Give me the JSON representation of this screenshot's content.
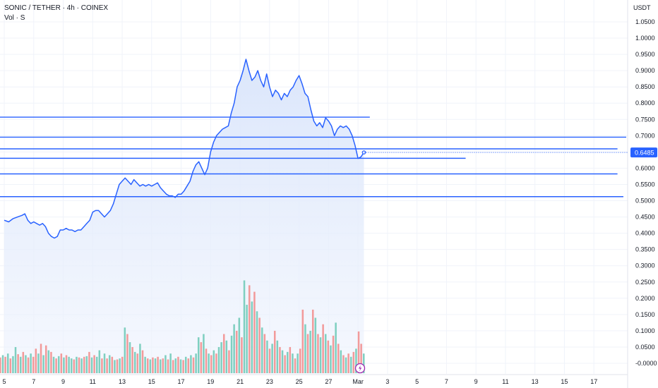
{
  "header": {
    "symbol": "SONIC / TETHER · 4h · COINEX",
    "volume_label": "Vol · S"
  },
  "colors": {
    "line": "#2962ff",
    "area_top": "#dbe6fb",
    "area_bottom": "#eef3fd",
    "vol_up": "#7fcfc0",
    "vol_down": "#f29a9a",
    "price_badge": "#2962ff",
    "grid": "#f0f3fa"
  },
  "chart_data": {
    "type": "line",
    "currency": "USDT",
    "last_price": 0.6485,
    "last_price_label": "0.6485",
    "ylim": [
      -0.03,
      1.1
    ],
    "y_ticks": [
      "1.0500",
      "1.0000",
      "0.9500",
      "0.9000",
      "0.8500",
      "0.8000",
      "0.7500",
      "0.7000",
      "0.6500",
      "0.6000",
      "0.5500",
      "0.5000",
      "0.4500",
      "0.4000",
      "0.3500",
      "0.3000",
      "0.2500",
      "0.2000",
      "0.1500",
      "0.1000",
      "0.0500",
      "-0.0000"
    ],
    "y_tick_values": [
      1.05,
      1.0,
      0.95,
      0.9,
      0.85,
      0.8,
      0.75,
      0.7,
      0.65,
      0.6,
      0.55,
      0.5,
      0.45,
      0.4,
      0.35,
      0.3,
      0.25,
      0.2,
      0.15,
      0.1,
      0.05,
      0.0
    ],
    "x_ticks": [
      {
        "label": "5",
        "day": 5
      },
      {
        "label": "7",
        "day": 7
      },
      {
        "label": "9",
        "day": 9
      },
      {
        "label": "11",
        "day": 11
      },
      {
        "label": "13",
        "day": 13
      },
      {
        "label": "15",
        "day": 15
      },
      {
        "label": "17",
        "day": 17
      },
      {
        "label": "19",
        "day": 19
      },
      {
        "label": "21",
        "day": 21
      },
      {
        "label": "23",
        "day": 23
      },
      {
        "label": "25",
        "day": 25
      },
      {
        "label": "27",
        "day": 27
      },
      {
        "label": "Mar",
        "day": 29
      },
      {
        "label": "3",
        "day": 31
      },
      {
        "label": "5",
        "day": 33
      },
      {
        "label": "7",
        "day": 35
      },
      {
        "label": "9",
        "day": 37
      },
      {
        "label": "11",
        "day": 39
      },
      {
        "label": "13",
        "day": 41
      },
      {
        "label": "15",
        "day": 43
      },
      {
        "label": "17",
        "day": 45
      }
    ],
    "price_series": [
      [
        5.0,
        0.44
      ],
      [
        5.3,
        0.435
      ],
      [
        5.6,
        0.445
      ],
      [
        5.9,
        0.45
      ],
      [
        6.2,
        0.455
      ],
      [
        6.4,
        0.46
      ],
      [
        6.6,
        0.44
      ],
      [
        6.8,
        0.43
      ],
      [
        7.0,
        0.435
      ],
      [
        7.2,
        0.43
      ],
      [
        7.4,
        0.425
      ],
      [
        7.6,
        0.43
      ],
      [
        7.8,
        0.42
      ],
      [
        8.0,
        0.4
      ],
      [
        8.2,
        0.39
      ],
      [
        8.4,
        0.385
      ],
      [
        8.6,
        0.39
      ],
      [
        8.8,
        0.41
      ],
      [
        9.0,
        0.41
      ],
      [
        9.2,
        0.415
      ],
      [
        9.4,
        0.41
      ],
      [
        9.6,
        0.41
      ],
      [
        9.8,
        0.405
      ],
      [
        10.0,
        0.41
      ],
      [
        10.2,
        0.41
      ],
      [
        10.4,
        0.42
      ],
      [
        10.6,
        0.43
      ],
      [
        10.8,
        0.44
      ],
      [
        11.0,
        0.465
      ],
      [
        11.2,
        0.47
      ],
      [
        11.4,
        0.47
      ],
      [
        11.6,
        0.46
      ],
      [
        11.8,
        0.45
      ],
      [
        12.0,
        0.46
      ],
      [
        12.2,
        0.47
      ],
      [
        12.4,
        0.49
      ],
      [
        12.6,
        0.52
      ],
      [
        12.8,
        0.55
      ],
      [
        13.0,
        0.56
      ],
      [
        13.2,
        0.57
      ],
      [
        13.4,
        0.56
      ],
      [
        13.6,
        0.55
      ],
      [
        13.8,
        0.565
      ],
      [
        14.0,
        0.555
      ],
      [
        14.2,
        0.545
      ],
      [
        14.4,
        0.55
      ],
      [
        14.6,
        0.545
      ],
      [
        14.8,
        0.55
      ],
      [
        15.0,
        0.545
      ],
      [
        15.2,
        0.55
      ],
      [
        15.4,
        0.555
      ],
      [
        15.6,
        0.54
      ],
      [
        15.8,
        0.53
      ],
      [
        16.0,
        0.52
      ],
      [
        16.2,
        0.515
      ],
      [
        16.4,
        0.515
      ],
      [
        16.6,
        0.51
      ],
      [
        16.8,
        0.52
      ],
      [
        17.0,
        0.52
      ],
      [
        17.2,
        0.53
      ],
      [
        17.4,
        0.545
      ],
      [
        17.6,
        0.56
      ],
      [
        17.8,
        0.59
      ],
      [
        18.0,
        0.61
      ],
      [
        18.2,
        0.62
      ],
      [
        18.4,
        0.6
      ],
      [
        18.6,
        0.58
      ],
      [
        18.8,
        0.6
      ],
      [
        19.0,
        0.65
      ],
      [
        19.2,
        0.68
      ],
      [
        19.4,
        0.7
      ],
      [
        19.6,
        0.71
      ],
      [
        19.8,
        0.72
      ],
      [
        20.0,
        0.725
      ],
      [
        20.2,
        0.73
      ],
      [
        20.4,
        0.77
      ],
      [
        20.6,
        0.8
      ],
      [
        20.8,
        0.85
      ],
      [
        21.0,
        0.87
      ],
      [
        21.2,
        0.9
      ],
      [
        21.4,
        0.935
      ],
      [
        21.6,
        0.9
      ],
      [
        21.8,
        0.87
      ],
      [
        22.0,
        0.88
      ],
      [
        22.2,
        0.9
      ],
      [
        22.4,
        0.87
      ],
      [
        22.6,
        0.85
      ],
      [
        22.8,
        0.89
      ],
      [
        23.0,
        0.85
      ],
      [
        23.2,
        0.82
      ],
      [
        23.4,
        0.84
      ],
      [
        23.6,
        0.83
      ],
      [
        23.8,
        0.81
      ],
      [
        24.0,
        0.83
      ],
      [
        24.2,
        0.82
      ],
      [
        24.4,
        0.84
      ],
      [
        24.6,
        0.85
      ],
      [
        24.8,
        0.87
      ],
      [
        25.0,
        0.885
      ],
      [
        25.2,
        0.86
      ],
      [
        25.4,
        0.83
      ],
      [
        25.6,
        0.82
      ],
      [
        25.8,
        0.78
      ],
      [
        26.0,
        0.745
      ],
      [
        26.2,
        0.73
      ],
      [
        26.4,
        0.74
      ],
      [
        26.6,
        0.725
      ],
      [
        26.8,
        0.755
      ],
      [
        27.0,
        0.745
      ],
      [
        27.2,
        0.73
      ],
      [
        27.4,
        0.7
      ],
      [
        27.6,
        0.72
      ],
      [
        27.8,
        0.73
      ],
      [
        28.0,
        0.725
      ],
      [
        28.2,
        0.73
      ],
      [
        28.4,
        0.72
      ],
      [
        28.6,
        0.7
      ],
      [
        28.8,
        0.67
      ],
      [
        29.0,
        0.63
      ],
      [
        29.2,
        0.635
      ],
      [
        29.4,
        0.6485
      ]
    ],
    "horizontal_lines": [
      {
        "price": 0.757,
        "from_day": 4.5,
        "to_day": 29.8
      },
      {
        "price": 0.6955,
        "from_day": 4.5,
        "to_day": 48
      },
      {
        "price": 0.6595,
        "from_day": 4.5,
        "to_day": 46.6
      },
      {
        "price": 0.6305,
        "from_day": 4.5,
        "to_day": 36.3
      },
      {
        "price": 0.5825,
        "from_day": 4.5,
        "to_day": 46.6
      },
      {
        "price": 0.5125,
        "from_day": 4.5,
        "to_day": 47
      }
    ],
    "volume_scale": {
      "day_from": 4.5,
      "day_to": 29.5
    },
    "volume": [
      {
        "v": 0.012,
        "up": true
      },
      {
        "v": 0.018,
        "up": false
      },
      {
        "v": 0.025,
        "up": true
      },
      {
        "v": 0.02,
        "up": false
      },
      {
        "v": 0.03,
        "up": true
      },
      {
        "v": 0.015,
        "up": false
      },
      {
        "v": 0.022,
        "up": true
      },
      {
        "v": 0.05,
        "up": true
      },
      {
        "v": 0.028,
        "up": false
      },
      {
        "v": 0.02,
        "up": true
      },
      {
        "v": 0.035,
        "up": false
      },
      {
        "v": 0.025,
        "up": true
      },
      {
        "v": 0.018,
        "up": false
      },
      {
        "v": 0.03,
        "up": true
      },
      {
        "v": 0.02,
        "up": false
      },
      {
        "v": 0.045,
        "up": false
      },
      {
        "v": 0.03,
        "up": true
      },
      {
        "v": 0.06,
        "up": false
      },
      {
        "v": 0.025,
        "up": true
      },
      {
        "v": 0.055,
        "up": false
      },
      {
        "v": 0.04,
        "up": true
      },
      {
        "v": 0.035,
        "up": false
      },
      {
        "v": 0.02,
        "up": true
      },
      {
        "v": 0.015,
        "up": false
      },
      {
        "v": 0.022,
        "up": true
      },
      {
        "v": 0.03,
        "up": false
      },
      {
        "v": 0.018,
        "up": true
      },
      {
        "v": 0.025,
        "up": false
      },
      {
        "v": 0.02,
        "up": true
      },
      {
        "v": 0.015,
        "up": true
      },
      {
        "v": 0.012,
        "up": false
      },
      {
        "v": 0.02,
        "up": true
      },
      {
        "v": 0.018,
        "up": false
      },
      {
        "v": 0.015,
        "up": true
      },
      {
        "v": 0.02,
        "up": false
      },
      {
        "v": 0.022,
        "up": true
      },
      {
        "v": 0.035,
        "up": false
      },
      {
        "v": 0.018,
        "up": true
      },
      {
        "v": 0.025,
        "up": false
      },
      {
        "v": 0.02,
        "up": true
      },
      {
        "v": 0.04,
        "up": true
      },
      {
        "v": 0.015,
        "up": false
      },
      {
        "v": 0.03,
        "up": true
      },
      {
        "v": 0.015,
        "up": false
      },
      {
        "v": 0.025,
        "up": true
      },
      {
        "v": 0.02,
        "up": false
      },
      {
        "v": 0.01,
        "up": true
      },
      {
        "v": 0.012,
        "up": false
      },
      {
        "v": 0.015,
        "up": true
      },
      {
        "v": 0.02,
        "up": false
      },
      {
        "v": 0.11,
        "up": true
      },
      {
        "v": 0.09,
        "up": false
      },
      {
        "v": 0.065,
        "up": true
      },
      {
        "v": 0.05,
        "up": false
      },
      {
        "v": 0.035,
        "up": true
      },
      {
        "v": 0.03,
        "up": false
      },
      {
        "v": 0.06,
        "up": true
      },
      {
        "v": 0.04,
        "up": false
      },
      {
        "v": 0.02,
        "up": true
      },
      {
        "v": 0.015,
        "up": false
      },
      {
        "v": 0.012,
        "up": true
      },
      {
        "v": 0.018,
        "up": false
      },
      {
        "v": 0.015,
        "up": true
      },
      {
        "v": 0.02,
        "up": false
      },
      {
        "v": 0.012,
        "up": true
      },
      {
        "v": 0.015,
        "up": false
      },
      {
        "v": 0.025,
        "up": true
      },
      {
        "v": 0.012,
        "up": false
      },
      {
        "v": 0.03,
        "up": true
      },
      {
        "v": 0.01,
        "up": false
      },
      {
        "v": 0.015,
        "up": true
      },
      {
        "v": 0.02,
        "up": false
      },
      {
        "v": 0.012,
        "up": true
      },
      {
        "v": 0.01,
        "up": false
      },
      {
        "v": 0.02,
        "up": true
      },
      {
        "v": 0.015,
        "up": false
      },
      {
        "v": 0.025,
        "up": true
      },
      {
        "v": 0.018,
        "up": false
      },
      {
        "v": 0.03,
        "up": true
      },
      {
        "v": 0.08,
        "up": true
      },
      {
        "v": 0.065,
        "up": false
      },
      {
        "v": 0.09,
        "up": true
      },
      {
        "v": 0.045,
        "up": false
      },
      {
        "v": 0.03,
        "up": true
      },
      {
        "v": 0.025,
        "up": false
      },
      {
        "v": 0.04,
        "up": true
      },
      {
        "v": 0.03,
        "up": false
      },
      {
        "v": 0.05,
        "up": true
      },
      {
        "v": 0.065,
        "up": true
      },
      {
        "v": 0.09,
        "up": false
      },
      {
        "v": 0.07,
        "up": true
      },
      {
        "v": 0.04,
        "up": false
      },
      {
        "v": 0.085,
        "up": true
      },
      {
        "v": 0.12,
        "up": true
      },
      {
        "v": 0.1,
        "up": false
      },
      {
        "v": 0.14,
        "up": true
      },
      {
        "v": 0.08,
        "up": false
      },
      {
        "v": 0.255,
        "up": true
      },
      {
        "v": 0.18,
        "up": true
      },
      {
        "v": 0.24,
        "up": false
      },
      {
        "v": 0.19,
        "up": true
      },
      {
        "v": 0.22,
        "up": false
      },
      {
        "v": 0.16,
        "up": true
      },
      {
        "v": 0.14,
        "up": false
      },
      {
        "v": 0.11,
        "up": true
      },
      {
        "v": 0.09,
        "up": false
      },
      {
        "v": 0.07,
        "up": true
      },
      {
        "v": 0.045,
        "up": false
      },
      {
        "v": 0.06,
        "up": true
      },
      {
        "v": 0.1,
        "up": false
      },
      {
        "v": 0.07,
        "up": true
      },
      {
        "v": 0.05,
        "up": false
      },
      {
        "v": 0.04,
        "up": true
      },
      {
        "v": 0.025,
        "up": false
      },
      {
        "v": 0.035,
        "up": true
      },
      {
        "v": 0.05,
        "up": false
      },
      {
        "v": 0.03,
        "up": true
      },
      {
        "v": 0.015,
        "up": false
      },
      {
        "v": 0.03,
        "up": true
      },
      {
        "v": 0.045,
        "up": false
      },
      {
        "v": 0.165,
        "up": false
      },
      {
        "v": 0.12,
        "up": true
      },
      {
        "v": 0.09,
        "up": false
      },
      {
        "v": 0.1,
        "up": true
      },
      {
        "v": 0.165,
        "up": false
      },
      {
        "v": 0.14,
        "up": true
      },
      {
        "v": 0.09,
        "up": false
      },
      {
        "v": 0.08,
        "up": true
      },
      {
        "v": 0.12,
        "up": false
      },
      {
        "v": 0.09,
        "up": true
      },
      {
        "v": 0.07,
        "up": false
      },
      {
        "v": 0.055,
        "up": true
      },
      {
        "v": 0.085,
        "up": false
      },
      {
        "v": 0.125,
        "up": true
      },
      {
        "v": 0.06,
        "up": false
      },
      {
        "v": 0.04,
        "up": true
      },
      {
        "v": 0.025,
        "up": false
      },
      {
        "v": 0.018,
        "up": true
      },
      {
        "v": 0.03,
        "up": false
      },
      {
        "v": 0.02,
        "up": true
      },
      {
        "v": 0.035,
        "up": false
      },
      {
        "v": 0.045,
        "up": true
      },
      {
        "v": 0.098,
        "up": false
      },
      {
        "v": 0.06,
        "up": false
      },
      {
        "v": 0.03,
        "up": true
      }
    ]
  }
}
